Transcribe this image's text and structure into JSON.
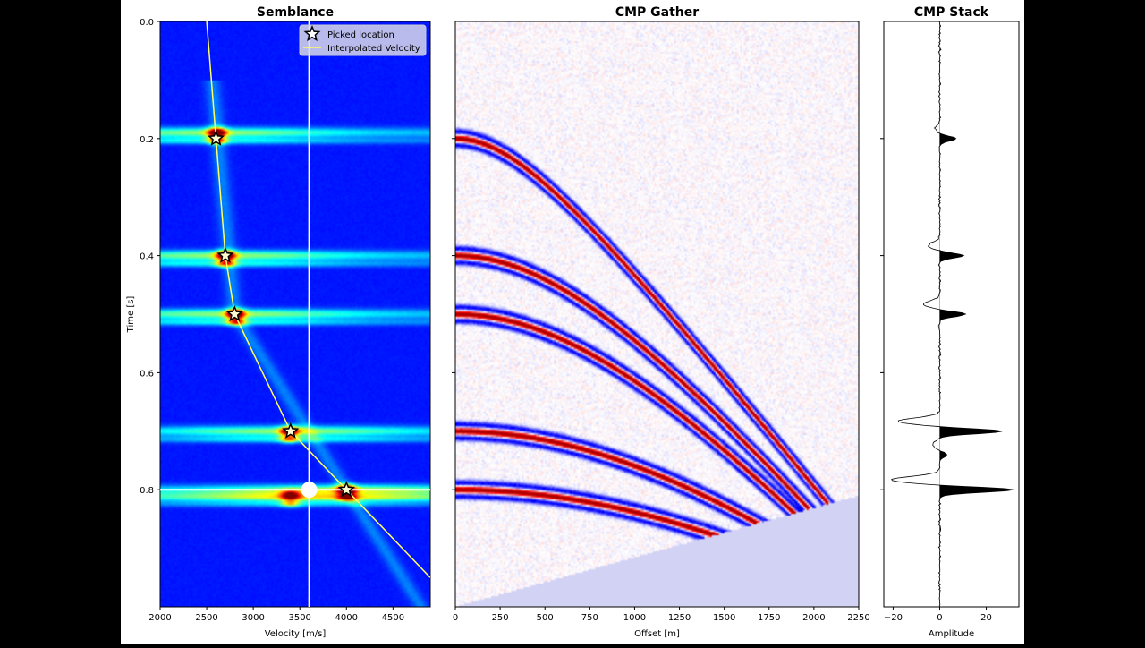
{
  "chart_data": [
    {
      "type": "heatmap",
      "title": "Semblance",
      "xlabel": "Velocity [m/s]",
      "ylabel": "Time [s]",
      "xlim": [
        2000,
        4900
      ],
      "ylim": [
        1.0,
        0.0
      ],
      "xticks": [
        "2000",
        "2500",
        "3000",
        "3500",
        "4000",
        "4500"
      ],
      "yticks": [
        "0.0",
        "0.2",
        "0.4",
        "0.6",
        "0.8"
      ],
      "colormap": "jet",
      "semblance_bands": [
        {
          "t": 0.19,
          "v": 2610,
          "strength": 1.0
        },
        {
          "t": 0.4,
          "v": 2700,
          "strength": 1.0
        },
        {
          "t": 0.5,
          "v": 2810,
          "strength": 1.0
        },
        {
          "t": 0.7,
          "v": 3390,
          "strength": 1.0
        },
        {
          "t": 0.8,
          "v": 4000,
          "strength": 1.0
        },
        {
          "t": 0.81,
          "v": 3400,
          "strength": 0.8
        }
      ],
      "legend": {
        "position": "top-right",
        "entries": [
          "Picked location",
          "Interpolated Velocity"
        ]
      },
      "series": [
        {
          "name": "Picked location",
          "kind": "scatter",
          "x": [
            2600,
            2700,
            2800,
            3400,
            4000
          ],
          "y": [
            0.2,
            0.4,
            0.5,
            0.7,
            0.8
          ]
        },
        {
          "name": "Interpolated Velocity",
          "kind": "line",
          "x": [
            2500,
            2600,
            2700,
            2800,
            3400,
            4000,
            4900
          ],
          "y": [
            0.0,
            0.2,
            0.4,
            0.5,
            0.7,
            0.8,
            0.95
          ]
        }
      ],
      "cursor": {
        "v": 3600,
        "t": 0.8
      }
    },
    {
      "type": "heatmap",
      "title": "CMP Gather",
      "xlabel": "Offset [m]",
      "xlim": [
        0,
        2250
      ],
      "ylim": [
        1.0,
        0.0
      ],
      "xticks": [
        "0",
        "250",
        "500",
        "750",
        "1000",
        "1250",
        "1500",
        "1750",
        "2000",
        "2250"
      ],
      "colormap": "seismic",
      "reflectors": [
        {
          "t0": 0.2,
          "v": 2600
        },
        {
          "t0": 0.4,
          "v": 2700
        },
        {
          "t0": 0.5,
          "v": 2800
        },
        {
          "t0": 0.7,
          "v": 3400
        },
        {
          "t0": 0.8,
          "v": 4000
        }
      ]
    },
    {
      "type": "line",
      "title": "CMP Stack",
      "xlabel": "Amplitude",
      "xlim": [
        -24,
        34
      ],
      "ylim": [
        1.0,
        0.0
      ],
      "xticks": [
        "−20",
        "0",
        "20"
      ],
      "events": [
        {
          "t": 0.2,
          "peak": 7,
          "neg": -2
        },
        {
          "t": 0.4,
          "peak": 10,
          "neg": -5
        },
        {
          "t": 0.5,
          "peak": 11,
          "neg": -7
        },
        {
          "t": 0.7,
          "peak": 27,
          "neg": -18
        },
        {
          "t": 0.74,
          "peak": 3,
          "neg": -3
        },
        {
          "t": 0.8,
          "peak": 32,
          "neg": -21
        }
      ]
    }
  ]
}
